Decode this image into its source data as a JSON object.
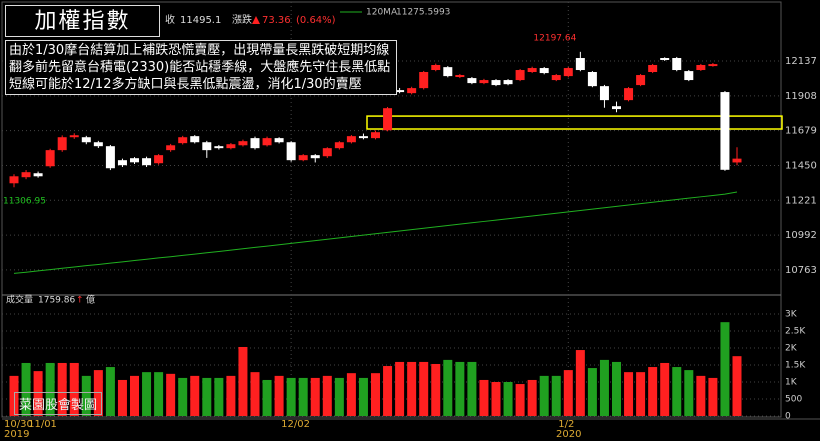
{
  "chart_data": {
    "type": "candlestick",
    "title": "加權指數",
    "close_label": "收",
    "change_label": "漲跌",
    "change": 73.36,
    "change_pct_label": "(0.64%)",
    "annotation": [
      "由於1/30摩台結算加上補跌恐慌賣壓，出現帶量長黑跌破短期均線",
      "翻多前先留意台積電(2330)能否站穩季線，大盤應先守住長黑低點",
      "短線可能於12/12多方缺口與長黑低點震盪，消化1/30的賣壓"
    ],
    "watermark": "菜園股會製圖",
    "categories": [
      "10/30",
      null,
      "11/01",
      null,
      null,
      null,
      null,
      null,
      null,
      null,
      null,
      null,
      null,
      null,
      null,
      null,
      null,
      null,
      null,
      null,
      null,
      null,
      null,
      "12/02",
      null,
      null,
      null,
      null,
      null,
      null,
      null,
      null,
      null,
      null,
      null,
      null,
      null,
      null,
      null,
      null,
      null,
      null,
      null,
      null,
      null,
      null,
      "1/2",
      null,
      null,
      null,
      null,
      null,
      null,
      null,
      null,
      null,
      null,
      null,
      null,
      null,
      null
    ],
    "years": [
      "2019",
      "2020"
    ],
    "open": [
      11333,
      11373,
      11399,
      11445,
      11551,
      11636,
      11636,
      11603,
      11577,
      11485,
      11498,
      11498,
      11465,
      11551,
      11597,
      11643,
      11603,
      11577,
      11564,
      11583,
      11630,
      11583,
      11630,
      11603,
      11485,
      11518,
      11511,
      11564,
      11603,
      11643,
      11630,
      11682,
      11946,
      11926,
      11959,
      12078,
      12097,
      12032,
      12025,
      11992,
      12012,
      12012,
      12012,
      12065,
      12091,
      12012,
      12038,
      12157,
      12065,
      11972,
      11840,
      11880,
      11979,
      12065,
      12157,
      12157,
      12071,
      12078,
      12104,
      11933,
      11470
    ],
    "high": [
      11392,
      11420,
      11410,
      11560,
      11648,
      11662,
      11645,
      11612,
      11585,
      11495,
      11505,
      11508,
      11525,
      11592,
      11645,
      11650,
      11612,
      11585,
      11598,
      11620,
      11640,
      11640,
      11636,
      11610,
      11525,
      11525,
      11570,
      11610,
      11650,
      11660,
      11680,
      11835,
      11960,
      11968,
      12072,
      12120,
      12104,
      12052,
      12032,
      12020,
      12018,
      12018,
      12085,
      12100,
      12098,
      12052,
      12098,
      12197.64,
      12071,
      11980,
      11870,
      11966,
      12052,
      12118,
      12162,
      12164,
      12078,
      12118,
      12124,
      11940,
      11570
    ],
    "low": [
      11306.95,
      11360,
      11370,
      11435,
      11540,
      11625,
      11590,
      11565,
      11420,
      11440,
      11460,
      11440,
      11455,
      11540,
      11588,
      11595,
      11500,
      11555,
      11556,
      11575,
      11555,
      11575,
      11595,
      11475,
      11478,
      11470,
      11500,
      11555,
      11595,
      11622,
      11622,
      11675,
      11925,
      11918,
      11950,
      12070,
      12030,
      12025,
      11985,
      11985,
      11972,
      11978,
      12005,
      12058,
      12050,
      12005,
      12030,
      12070,
      11965,
      11830,
      11800,
      11872,
      11972,
      12058,
      12138,
      12070,
      12005,
      12072,
      12100,
      11415,
      11452
    ],
    "close": [
      11379,
      11406,
      11379,
      11551,
      11636,
      11649,
      11603,
      11577,
      11432,
      11452,
      11471,
      11452,
      11518,
      11583,
      11636,
      11603,
      11551,
      11564,
      11590,
      11610,
      11564,
      11630,
      11603,
      11485,
      11518,
      11498,
      11564,
      11603,
      11643,
      11630,
      11669,
      11827,
      11933,
      11959,
      12065,
      12111,
      12038,
      12045,
      11992,
      12012,
      11979,
      11985,
      12078,
      12091,
      12058,
      12045,
      12091,
      12078,
      11972,
      11880,
      11821,
      11959,
      12045,
      12111,
      12144,
      12078,
      12012,
      12111,
      12117,
      11421.74,
      11495.1
    ],
    "up_color": "#ff2020",
    "down_color": "#ffffff",
    "ma": {
      "name": "120MA",
      "color": "#20b020",
      "values": [
        10740,
        10748,
        10757,
        10765,
        10774,
        10782,
        10791,
        10799,
        10808,
        10816,
        10825,
        10833,
        10842,
        10850,
        10859,
        10867,
        10876,
        10884,
        10893,
        10902,
        10911,
        10920,
        10929,
        10938,
        10947,
        10956,
        10965,
        10974,
        10983,
        10992,
        11001,
        11010,
        11019,
        11028,
        11037,
        11046,
        11055,
        11064,
        11073,
        11082,
        11091,
        11100,
        11109,
        11118,
        11127,
        11136,
        11145,
        11154,
        11163,
        11172,
        11181,
        11190,
        11199,
        11208,
        11217,
        11226,
        11235,
        11244,
        11253,
        11262,
        11275.5993
      ]
    },
    "highlight_range": [
      11690,
      11775
    ],
    "ylim": [
      10631,
      12486
    ],
    "yticks": [
      12137,
      11908,
      11679,
      11450,
      11221,
      10992,
      10763
    ],
    "volume": {
      "name": "成交量",
      "unit": "億",
      "values": [
        1180,
        1560,
        1320,
        1560,
        1560,
        1560,
        1180,
        1350,
        1440,
        1060,
        1180,
        1290,
        1290,
        1240,
        1120,
        1180,
        1120,
        1120,
        1180,
        2030,
        1290,
        1060,
        1180,
        1120,
        1120,
        1120,
        1180,
        1120,
        1260,
        1120,
        1260,
        1470,
        1590,
        1590,
        1590,
        1530,
        1650,
        1590,
        1590,
        1060,
        1000,
        1000,
        940,
        1060,
        1180,
        1180,
        1350,
        1940,
        1410,
        1650,
        1590,
        1290,
        1290,
        1440,
        1560,
        1440,
        1350,
        1180,
        1120,
        2760,
        1759.86
      ],
      "colors": [
        "#ff2020",
        "#20a020",
        "#ff2020",
        "#20a020",
        "#ff2020",
        "#ff2020",
        "#20a020",
        "#ff2020",
        "#20a020",
        "#ff2020",
        "#ff2020",
        "#20a020",
        "#20a020",
        "#ff2020",
        "#20a020",
        "#ff2020",
        "#20a020",
        "#20a020",
        "#ff2020",
        "#ff2020",
        "#ff2020",
        "#20a020",
        "#ff2020",
        "#20a020",
        "#20a020",
        "#ff2020",
        "#ff2020",
        "#20a020",
        "#ff2020",
        "#20a020",
        "#ff2020",
        "#ff2020",
        "#ff2020",
        "#ff2020",
        "#ff2020",
        "#ff2020",
        "#20a020",
        "#20a020",
        "#20a020",
        "#ff2020",
        "#ff2020",
        "#20a020",
        "#ff2020",
        "#ff2020",
        "#20a020",
        "#20a020",
        "#ff2020",
        "#ff2020",
        "#20a020",
        "#20a020",
        "#20a020",
        "#ff2020",
        "#ff2020",
        "#ff2020",
        "#ff2020",
        "#20a020",
        "#20a020",
        "#ff2020",
        "#ff2020",
        "#20a020",
        "#ff2020"
      ],
      "ylim": [
        0,
        3265
      ],
      "yticks": [
        {
          "value": 3000,
          "label": "3K"
        },
        {
          "value": 2500,
          "label": "2.5K"
        },
        {
          "value": 2000,
          "label": "2K"
        },
        {
          "value": 1500,
          "label": "1.5K"
        },
        {
          "value": 1000,
          "label": "1K"
        },
        500,
        0
      ]
    },
    "grid": true
  }
}
